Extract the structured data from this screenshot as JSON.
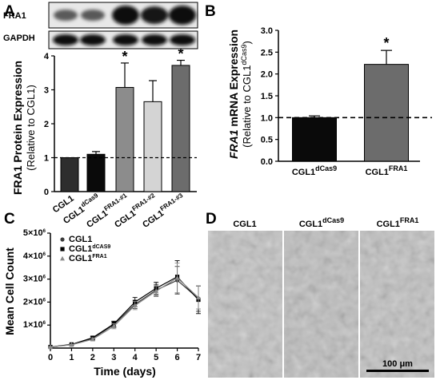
{
  "panels": {
    "A": {
      "label": "A",
      "blot_labels": [
        "FRA1",
        "GAPDH"
      ],
      "ylabel": "FRA1 Protein Expression",
      "ysublabel": "(Relative to CGL1)",
      "categories": [
        {
          "base": "CGL1",
          "sup": ""
        },
        {
          "base": "CGL1",
          "sup": "dCas9"
        },
        {
          "base": "CGL1",
          "sup": "FRA1-#1"
        },
        {
          "base": "CGL1",
          "sup": "FRA1-#2"
        },
        {
          "base": "CGL1",
          "sup": "FRA1-#3"
        }
      ],
      "yticks": [
        "0",
        "1",
        "2",
        "3",
        "4"
      ],
      "star": "*"
    },
    "B": {
      "label": "B",
      "ylabel_italic": "FRA1",
      "ylabel_rest": " mRNA Expression",
      "ysublabel": "(Relative to CGL1",
      "ysublabel_sup": "dCas9",
      "ysublabel_end": ")",
      "categories": [
        {
          "base": "CGL1",
          "sup": "dCas9"
        },
        {
          "base": "CGL1",
          "sup": "FRA1"
        }
      ],
      "yticks": [
        "0.0",
        "0.5",
        "1.0",
        "1.5",
        "2.0",
        "2.5",
        "3.0"
      ],
      "star": "*"
    },
    "C": {
      "label": "C",
      "ylabel": "Mean Cell Count",
      "xlabel": "Time (days)",
      "xticks": [
        "0",
        "1",
        "2",
        "3",
        "4",
        "5",
        "6",
        "7"
      ],
      "ytick_base": [
        "1×10",
        "2×10",
        "3×10",
        "4×10",
        "5×10"
      ],
      "ytick_exp": "6",
      "legend": [
        {
          "base": "CGL1",
          "sup": "",
          "marker": "circle"
        },
        {
          "base": "CGL1",
          "sup": "dCAS9",
          "marker": "square"
        },
        {
          "base": "CGL1",
          "sup": "FRA1",
          "marker": "triangle"
        }
      ]
    },
    "D": {
      "label": "D",
      "titles": [
        {
          "base": "CGL1",
          "sup": ""
        },
        {
          "base": "CGL1",
          "sup": "dCas9"
        },
        {
          "base": "CGL1",
          "sup": "FRA1"
        }
      ],
      "scalebar": "100 μm"
    }
  },
  "colors": {
    "bar_dark": "#2e2e2e",
    "bar_black": "#0a0a0a",
    "bar_gray": "#8c8c8c",
    "bar_light": "#d4d4d4",
    "bar_mid": "#6c6c6c",
    "micro_bg": "#bfbfbf",
    "blot_bg": "#e8e8e8"
  },
  "chart_data": [
    {
      "type": "bar",
      "panel": "A",
      "categories": [
        "CGL1",
        "CGL1 dCas9",
        "CGL1 FRA1-#1",
        "CGL1 FRA1-#2",
        "CGL1 FRA1-#3"
      ],
      "values": [
        1.0,
        1.1,
        3.07,
        2.65,
        3.72
      ],
      "errors": [
        0.0,
        0.08,
        0.72,
        0.62,
        0.15
      ],
      "significant": [
        false,
        false,
        true,
        false,
        true
      ],
      "reference_line": 1.0,
      "ylabel": "FRA1 Protein Expression (Relative to CGL1)",
      "ylim": [
        0,
        4
      ]
    },
    {
      "type": "bar",
      "panel": "B",
      "categories": [
        "CGL1 dCas9",
        "CGL1 FRA1"
      ],
      "values": [
        1.0,
        2.22
      ],
      "errors": [
        0.04,
        0.32
      ],
      "significant": [
        false,
        true
      ],
      "reference_line": 1.0,
      "ylabel": "FRA1 mRNA Expression (Relative to CGL1 dCas9)",
      "ylim": [
        0,
        3.0
      ]
    },
    {
      "type": "line",
      "panel": "C",
      "x": [
        0,
        1,
        2,
        3,
        4,
        5,
        6,
        7
      ],
      "xlabel": "Time (days)",
      "ylabel": "Mean Cell Count",
      "xlim": [
        0,
        7
      ],
      "ylim": [
        0,
        5000000
      ],
      "series": [
        {
          "name": "CGL1",
          "values": [
            50000,
            150000,
            420000,
            1020000,
            1900000,
            2520000,
            2950000,
            2150000
          ],
          "errors": [
            20000,
            30000,
            70000,
            120000,
            180000,
            250000,
            600000,
            550000
          ]
        },
        {
          "name": "CGL1 dCAS9",
          "values": [
            50000,
            160000,
            450000,
            1050000,
            2000000,
            2600000,
            3100000,
            2100000
          ],
          "errors": [
            20000,
            30000,
            70000,
            120000,
            200000,
            260000,
            700000,
            600000
          ]
        },
        {
          "name": "CGL1 FRA1",
          "values": [
            50000,
            140000,
            380000,
            950000,
            1850000,
            2480000,
            3050000,
            2200000
          ],
          "errors": [
            20000,
            30000,
            60000,
            110000,
            180000,
            240000,
            650000,
            500000
          ]
        }
      ]
    }
  ]
}
